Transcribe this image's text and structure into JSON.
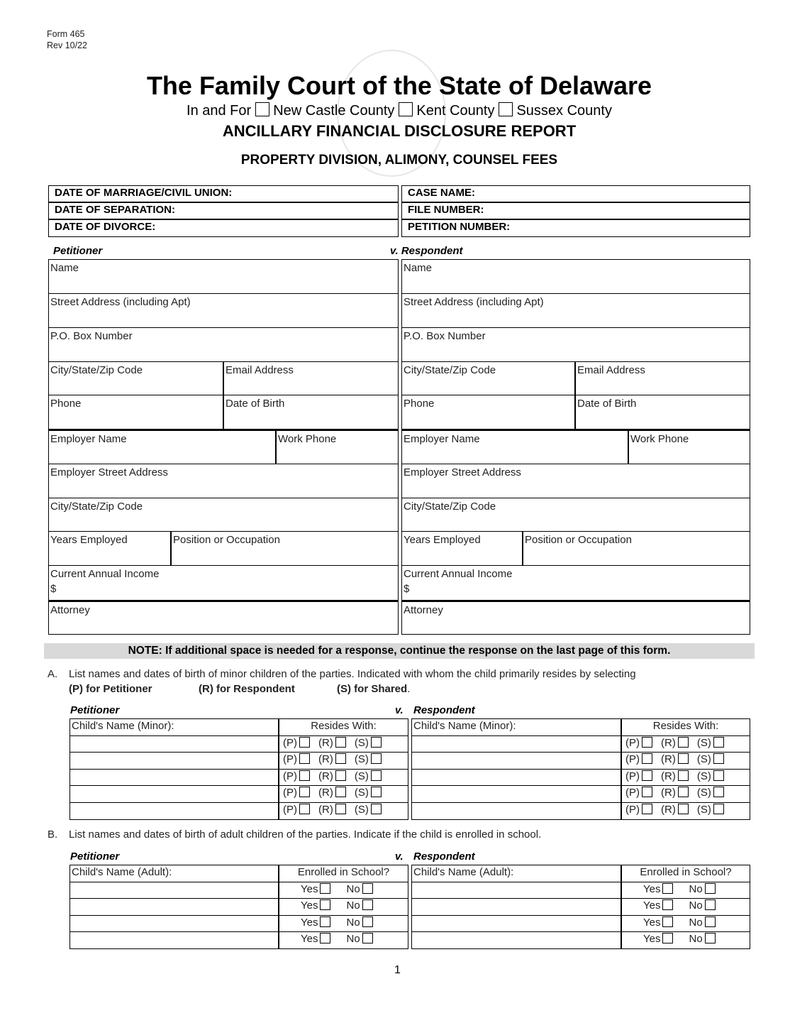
{
  "form_id": {
    "number": "Form 465",
    "revision": "Rev 10/22"
  },
  "header": {
    "title": "The Family Court of the State of Delaware",
    "county_prefix": "In and For",
    "counties": [
      "New Castle County",
      "Kent County",
      "Sussex County"
    ],
    "report_title": "ANCILLARY FINANCIAL DISCLOSURE REPORT",
    "subtitle": "PROPERTY DIVISION, ALIMONY, COUNSEL FEES"
  },
  "case_info": {
    "left": [
      "DATE OF MARRIAGE/CIVIL UNION:",
      "DATE OF SEPARATION:",
      "DATE OF DIVORCE:"
    ],
    "right": [
      "CASE NAME:",
      "FILE NUMBER:",
      "PETITION NUMBER:"
    ]
  },
  "parties": {
    "petitioner_label": "Petitioner",
    "respondent_label": "v. Respondent",
    "fields": [
      [
        "Name"
      ],
      [
        "Street Address (including Apt)"
      ],
      [
        "P.O. Box Number"
      ],
      [
        "City/State/Zip Code",
        "Email Address"
      ],
      [
        "Phone",
        "Date of Birth"
      ],
      [
        "Employer Name",
        "Work Phone"
      ],
      [
        "Employer Street Address"
      ],
      [
        "City/State/Zip Code"
      ],
      [
        "Years Employed",
        "Position or Occupation"
      ],
      [
        "Current Annual Income"
      ],
      [
        "Attorney"
      ]
    ],
    "currency_symbol": "$"
  },
  "note": "NOTE: If additional space is needed for a response, continue the response on the last page of this form.",
  "section_a": {
    "letter": "A.",
    "text": "List names and dates of birth of minor children of the parties. Indicated with whom the child primarily resides by selecting",
    "options": [
      "(P) for Petitioner",
      "(R) for Respondent",
      "(S) for Shared"
    ],
    "options_end": ".",
    "petitioner_label": "Petitioner",
    "v_label": "v.",
    "respondent_label": "Respondent",
    "col_name": "Child's Name (Minor):",
    "col_resides": "Resides With:",
    "choices": [
      "(P)",
      "(R)",
      "(S)"
    ],
    "row_count": 5
  },
  "section_b": {
    "letter": "B.",
    "text": "List names and dates of birth of adult children of the parties. Indicate if the child is enrolled in school.",
    "petitioner_label": "Petitioner",
    "v_label": "v.",
    "respondent_label": "Respondent",
    "col_name": "Child's Name (Adult):",
    "col_enrolled": "Enrolled in School?",
    "choices": [
      "Yes",
      "No"
    ],
    "row_count": 4
  },
  "page_number": "1"
}
